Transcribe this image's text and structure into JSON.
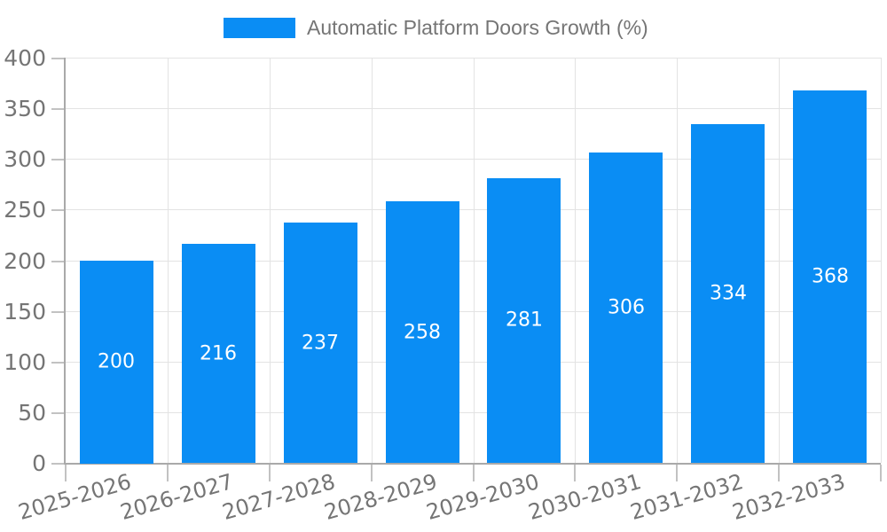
{
  "legend": {
    "label": "Automatic Platform Doors Growth (%)"
  },
  "chart_data": {
    "type": "bar",
    "title": "Automatic Platform Doors Growth (%)",
    "categories": [
      "2025-2026",
      "2026-2027",
      "2027-2028",
      "2028-2029",
      "2029-2030",
      "2030-2031",
      "2031-2032",
      "2032-2033"
    ],
    "series": [
      {
        "name": "Automatic Platform Doors Growth (%)",
        "values": [
          200,
          216,
          237,
          258,
          281,
          306,
          334,
          368
        ]
      }
    ],
    "bar_value_labels": [
      "200",
      "216",
      "237",
      "258",
      "281",
      "306",
      "334",
      "368"
    ],
    "xlabel": "",
    "ylabel": "",
    "ylim": [
      0,
      400
    ],
    "ytick_step": 50,
    "yticks": [
      0,
      50,
      100,
      150,
      200,
      250,
      300,
      350,
      400
    ],
    "grid": true,
    "legend_position": "top",
    "x_label_rotation_deg": 16,
    "colors": {
      "bar": "#0a8df4",
      "axis": "#a9a9a9",
      "grid": "#e3e3e3",
      "tick": "#c2c2c2",
      "text": "#757575",
      "value_text": "#ffffff"
    }
  }
}
